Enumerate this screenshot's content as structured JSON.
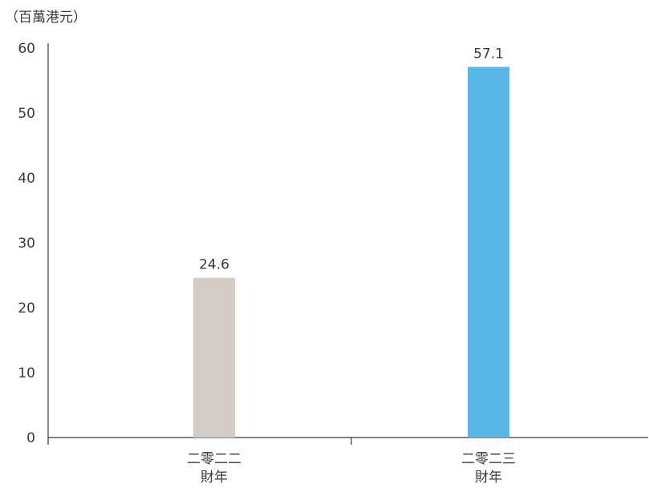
{
  "chart_data": {
    "type": "bar",
    "unit_label": "（百萬港元）",
    "categories": [
      [
        "二零二二",
        "財年"
      ],
      [
        "二零二三",
        "財年"
      ]
    ],
    "values": [
      24.6,
      57.1
    ],
    "value_labels": [
      "24.6",
      "57.1"
    ],
    "colors": [
      "#d3ccc7",
      "#5ab5e9"
    ],
    "ylim": [
      0,
      60
    ],
    "yticks": [
      0,
      10,
      20,
      30,
      40,
      50,
      60
    ],
    "grid": false
  }
}
